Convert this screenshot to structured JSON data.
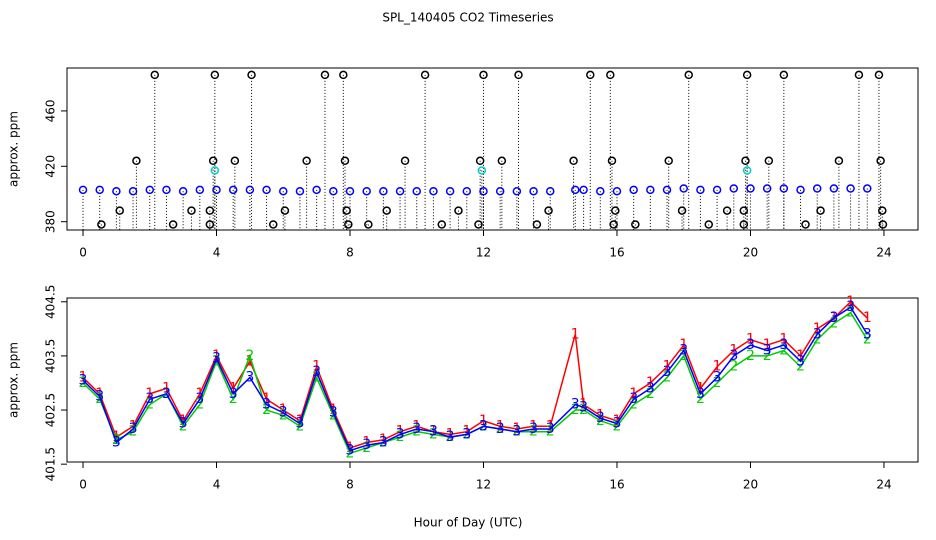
{
  "chart_data": [
    {
      "type": "scatter",
      "title": "SPL_140405  CO2 Timeseries",
      "ylabel": "approx. ppm",
      "xlim": [
        -0.48,
        25.02
      ],
      "ylim": [
        374,
        491
      ],
      "xticks": [
        0,
        4,
        8,
        12,
        16,
        20,
        24
      ],
      "yticks": [
        380,
        420,
        460
      ],
      "drop_lines": true,
      "series": [
        {
          "color": "#0000ff",
          "x": [
            0,
            0.5,
            1,
            1.5,
            2,
            2.5,
            3,
            3.5,
            4,
            4.5,
            5,
            5.5,
            6,
            6.5,
            7,
            7.5,
            8,
            8.5,
            9,
            9.5,
            10,
            10.5,
            11,
            11.5,
            12,
            12.5,
            13,
            13.5,
            14,
            14.75,
            15,
            15.5,
            16,
            16.5,
            17,
            17.5,
            18,
            18.5,
            19,
            19.5,
            20,
            20.5,
            21,
            21.5,
            22,
            22.5,
            23,
            23.5
          ],
          "values": [
            403,
            403,
            402,
            402,
            403,
            403,
            402,
            403,
            403,
            403,
            403,
            403,
            402,
            402,
            403,
            402,
            402,
            402,
            402,
            402,
            402,
            402,
            402,
            402,
            402,
            402,
            402,
            402,
            402,
            403,
            403,
            402,
            402,
            403,
            403,
            403,
            404,
            403,
            403,
            404,
            404,
            404,
            404,
            403,
            404,
            404,
            404,
            404
          ]
        },
        {
          "color": "#000000",
          "x": [
            2.15,
            3.95,
            5.05,
            7.25,
            7.8,
            10.25,
            12.0,
            13.05,
            15.2,
            15.8,
            18.15,
            19.9,
            21.0,
            23.25,
            23.85,
            1.6,
            3.9,
            4.55,
            6.7,
            7.85,
            9.65,
            11.9,
            12.55,
            14.7,
            15.85,
            17.55,
            19.85,
            20.55,
            22.65,
            23.9,
            1.1,
            3.25,
            3.8,
            6.05,
            7.9,
            9.1,
            11.25,
            13.95,
            15.95,
            17.95,
            19.3,
            19.8,
            22.1,
            23.95,
            0.55,
            2.7,
            3.8,
            5.7,
            7.95,
            8.55,
            10.75,
            11.85,
            13.6,
            15.9,
            16.55,
            18.75,
            19.8,
            21.65,
            23.97
          ],
          "values": [
            486,
            486,
            486,
            486,
            486,
            486,
            486,
            486,
            486,
            486,
            486,
            486,
            486,
            486,
            486,
            424,
            424,
            424,
            424,
            424,
            424,
            424,
            424,
            424,
            424,
            424,
            424,
            424,
            424,
            424,
            388,
            388,
            388,
            388,
            388,
            388,
            388,
            388,
            388,
            388,
            388,
            388,
            388,
            388,
            378,
            378,
            378,
            378,
            378,
            378,
            378,
            378,
            378,
            378,
            378,
            378,
            378,
            378,
            378
          ]
        },
        {
          "color": "#00cccc",
          "x": [
            3.95,
            11.95,
            19.9
          ],
          "values": [
            417,
            417,
            417
          ]
        }
      ]
    },
    {
      "type": "line",
      "ylabel": "approx. ppm",
      "xlabel": "Hour of Day (UTC)",
      "xlim": [
        -0.48,
        25.02
      ],
      "ylim": [
        401.54,
        404.57
      ],
      "xticks": [
        0,
        4,
        8,
        12,
        16,
        20,
        24
      ],
      "yticks": [
        401.5,
        402.5,
        403.5,
        404.5
      ],
      "x": [
        0,
        0.5,
        1,
        1.5,
        2,
        2.5,
        3,
        3.5,
        4,
        4.5,
        5,
        5.5,
        6,
        6.5,
        7,
        7.5,
        8,
        8.5,
        9,
        9.5,
        10,
        10.5,
        11,
        11.5,
        12,
        12.5,
        13,
        13.5,
        14,
        14.75,
        15,
        15.5,
        16,
        16.5,
        17,
        17.5,
        18,
        18.5,
        19,
        19.5,
        20,
        20.5,
        21,
        21.5,
        22,
        22.5,
        23,
        23.5
      ],
      "series": [
        {
          "color": "#ff0000",
          "marker": "1",
          "values": [
            403.1,
            402.8,
            402.0,
            402.2,
            402.8,
            402.9,
            402.3,
            402.8,
            403.5,
            402.9,
            403.4,
            402.7,
            402.5,
            402.3,
            403.3,
            402.5,
            401.8,
            401.9,
            401.95,
            402.1,
            402.2,
            402.1,
            402.05,
            402.1,
            402.3,
            402.2,
            402.15,
            402.2,
            402.2,
            403.9,
            402.6,
            402.4,
            402.3,
            402.8,
            403.0,
            403.3,
            403.7,
            402.9,
            403.3,
            403.6,
            403.8,
            403.7,
            403.8,
            403.5,
            404.0,
            404.2,
            404.5,
            404.2
          ]
        },
        {
          "color": "#00cc00",
          "marker": "2",
          "values": [
            403.0,
            402.7,
            401.95,
            402.1,
            402.6,
            402.8,
            402.2,
            402.6,
            403.4,
            402.7,
            403.5,
            402.5,
            402.4,
            402.2,
            403.1,
            402.4,
            401.7,
            401.8,
            401.9,
            402.0,
            402.1,
            402.05,
            402.0,
            402.05,
            402.2,
            402.15,
            402.1,
            402.1,
            402.1,
            402.5,
            402.5,
            402.3,
            402.2,
            402.6,
            402.8,
            403.1,
            403.5,
            402.7,
            403.0,
            403.3,
            403.5,
            403.5,
            403.6,
            403.3,
            403.8,
            404.1,
            404.3,
            403.8
          ]
        },
        {
          "color": "#0000ff",
          "marker": "3",
          "values": [
            403.05,
            402.75,
            401.9,
            402.15,
            402.7,
            402.8,
            402.25,
            402.7,
            403.45,
            402.8,
            403.1,
            402.6,
            402.45,
            402.25,
            403.2,
            402.45,
            401.75,
            401.85,
            401.9,
            402.05,
            402.15,
            402.1,
            402.0,
            402.05,
            402.2,
            402.15,
            402.1,
            402.15,
            402.15,
            402.6,
            402.55,
            402.35,
            402.25,
            402.7,
            402.9,
            403.2,
            403.6,
            402.8,
            403.1,
            403.5,
            403.7,
            403.6,
            403.7,
            403.4,
            403.9,
            404.2,
            404.4,
            403.9
          ]
        }
      ]
    }
  ]
}
